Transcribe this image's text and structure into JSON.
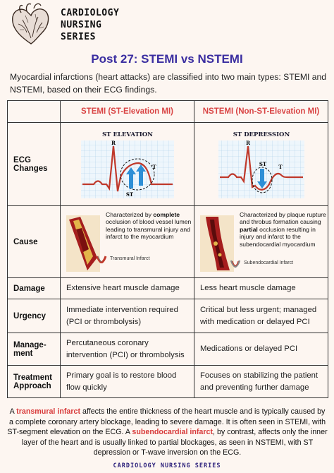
{
  "series": {
    "line1": "CARDIOLOGY",
    "line2": "NURSING",
    "line3": "SERIES"
  },
  "post_title": "Post 27: STEMI vs NSTEMI",
  "intro": "Myocardial infarctions (heart attacks) are classified into two main types: STEMI and NSTEMI, based on their ECG findings.",
  "table": {
    "col_stemi": "STEMI (ST-Elevation MI)",
    "col_nstemi": "NSTEMI (Non-ST-Elevation MI)",
    "rows": {
      "ecg": {
        "label_line1": "ECG",
        "label_line2": "Changes",
        "stemi_title": "ST ELEVATION",
        "nstemi_title": "ST DEPRESSION",
        "wave_r": "R",
        "wave_t": "T",
        "wave_st": "ST"
      },
      "cause": {
        "label": "Cause",
        "stemi_pre": "Characterized by ",
        "stemi_bold": "complete",
        "stemi_post": " occlusion of blood vessel lumen leading to transmural injury and infarct to the myocardium",
        "stemi_infarct": "Transmural Infarct",
        "nstemi_pre": "Characterized by plaque rupture and throbus formation causing ",
        "nstemi_bold": "partial",
        "nstemi_post": " occlusion resulting in injury and infarct to the subendocardial myocardium",
        "nstemi_infarct": "Subendocardial Infarct"
      },
      "damage": {
        "label": "Damage",
        "stemi": "Extensive heart muscle damage",
        "nstemi": "Less heart muscle damage"
      },
      "urgency": {
        "label": "Urgency",
        "stemi_l1": "Immediate intervention required",
        "stemi_l2": "(PCI or thrombolysis)",
        "nstemi_l1": "Critical but less urgent; managed",
        "nstemi_l2": "with medication or delayed PCI"
      },
      "management": {
        "label_l1": "Manage-",
        "label_l2": "ment",
        "stemi_l1": "Percutaneous coronary",
        "stemi_l2": "intervention (PCI) or thrombolysis",
        "nstemi": "Medications or delayed PCI"
      },
      "treatment": {
        "label_l1": "Treatment",
        "label_l2": "Approach",
        "stemi_l1": "Primary goal is to restore blood",
        "stemi_l2": "flow quickly",
        "nstemi_l1": "Focuses on stabilizing the patient",
        "nstemi_l2": "and preventing further damage"
      }
    }
  },
  "footer": {
    "p1": "A ",
    "hl1": "transmural infarct",
    "p2": " affects the entire thickness of the heart muscle and is typically caused by a complete coronary artery blockage, leading to severe damage. It is often seen in STEMI, with ST-segment elevation on the ECG. A ",
    "hl2": "subendocardial infarct",
    "p3": ", by contrast, affects only the inner layer of the heart and is usually linked to partial blockages, as seen in NSTEMI, with ST depression or T-wave inversion on the ECG."
  },
  "footer_brand": "CARDIOLOGY NURSING SERIES",
  "colors": {
    "accent_red": "#d94545",
    "title_purple": "#3a2da0",
    "ecg_red": "#c0392b",
    "arrow_blue": "#2e8fd6"
  }
}
